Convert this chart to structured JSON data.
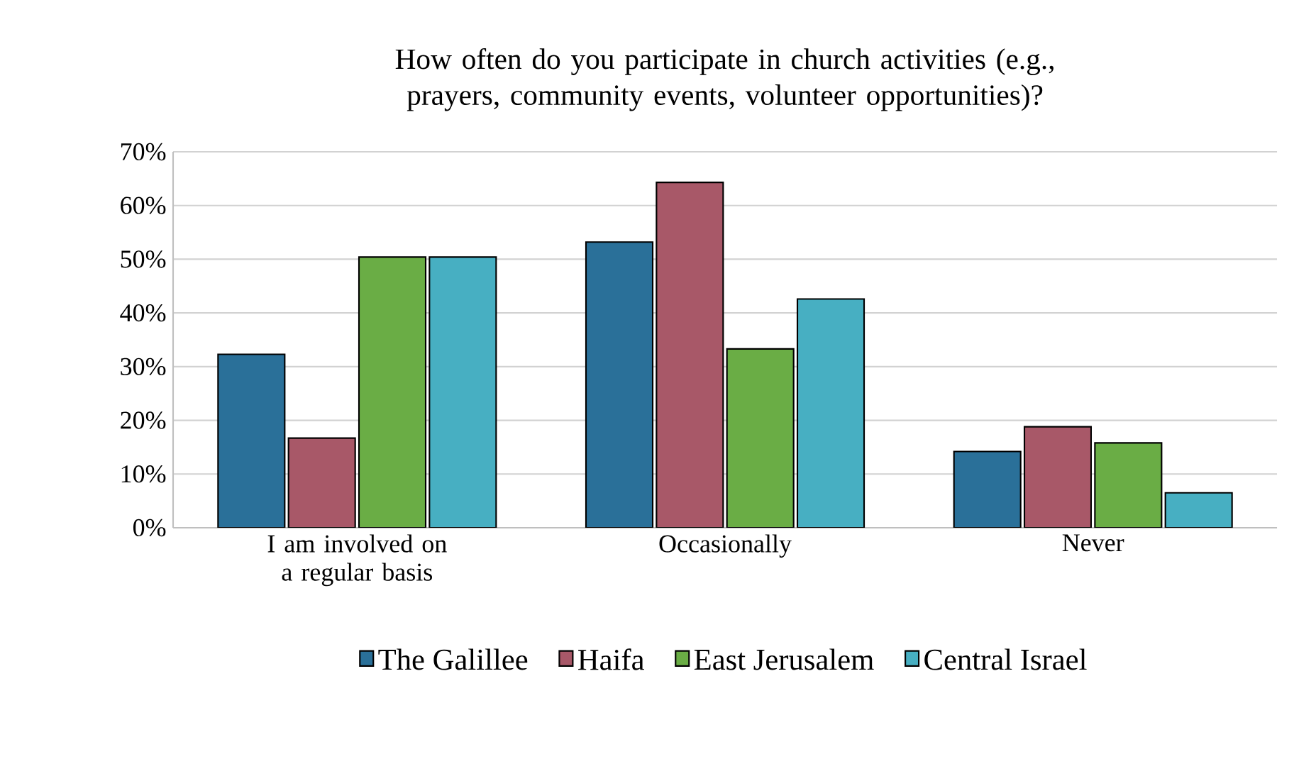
{
  "chart_data": {
    "type": "bar",
    "title": "How often do you participate in church activities (e.g., prayers, community events, volunteer opportunities)?",
    "categories": [
      "I am involved on a regular basis",
      "Occasionally",
      "Never"
    ],
    "series": [
      {
        "name": "The Galillee",
        "color": "#2a7099",
        "values": [
          32.3,
          53.2,
          14.2
        ]
      },
      {
        "name": "Haifa",
        "color": "#a85868",
        "values": [
          16.7,
          64.3,
          18.8
        ]
      },
      {
        "name": "East Jerusalem",
        "color": "#6aad45",
        "values": [
          50.4,
          33.3,
          15.8
        ]
      },
      {
        "name": "Central Israel",
        "color": "#47afc2",
        "values": [
          50.4,
          42.6,
          6.5
        ]
      }
    ],
    "ylim": [
      0,
      70
    ],
    "yticks": [
      {
        "value": 0,
        "label": "0%"
      },
      {
        "value": 10,
        "label": "10%"
      },
      {
        "value": 20,
        "label": "20%"
      },
      {
        "value": 30,
        "label": "30%"
      },
      {
        "value": 40,
        "label": "40%"
      },
      {
        "value": 50,
        "label": "50%"
      },
      {
        "value": 60,
        "label": "60%"
      },
      {
        "value": 70,
        "label": "70%"
      }
    ],
    "grid": "y",
    "legend": "bottom"
  }
}
